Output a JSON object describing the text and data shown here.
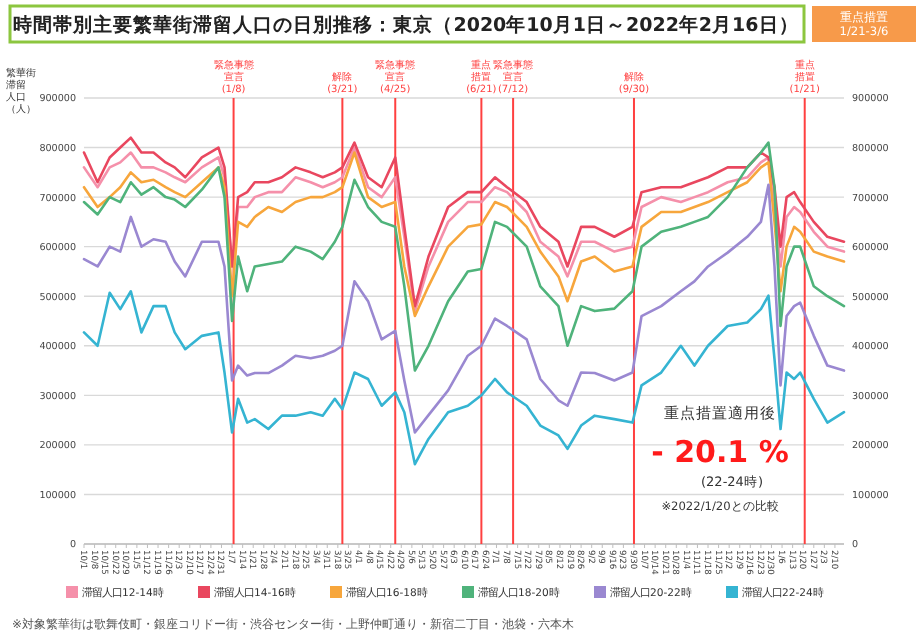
{
  "chart_data": {
    "type": "line",
    "title": "時間帯別主要繁華街滞留人口の日別推移：東京（2020年10月1日～2022年2月16日）",
    "ylabel": "繁華街滞留人口（人）",
    "x": [
      "2020-10-01",
      "2020-10-10",
      "2020-10-18",
      "2020-10-25",
      "2020-11-01",
      "2020-11-08",
      "2020-11-16",
      "2020-11-24",
      "2020-11-30",
      "2020-12-07",
      "2020-12-18",
      "2020-12-29",
      "2021-01-02",
      "2021-01-07",
      "2021-01-11",
      "2021-01-17",
      "2021-01-22",
      "2021-01-31",
      "2021-02-09",
      "2021-02-18",
      "2021-02-28",
      "2021-03-08",
      "2021-03-16",
      "2021-03-21",
      "2021-03-29",
      "2021-04-07",
      "2021-04-16",
      "2021-04-25",
      "2021-05-01",
      "2021-05-08",
      "2021-05-17",
      "2021-05-30",
      "2021-06-12",
      "2021-06-21",
      "2021-06-30",
      "2021-07-08",
      "2021-07-21",
      "2021-07-30",
      "2021-08-11",
      "2021-08-17",
      "2021-08-26",
      "2021-09-04",
      "2021-09-17",
      "2021-09-29",
      "2021-10-05",
      "2021-10-18",
      "2021-10-31",
      "2021-11-09",
      "2021-11-18",
      "2021-12-01",
      "2021-12-14",
      "2021-12-23",
      "2021-12-28",
      "2022-01-01",
      "2022-01-05",
      "2022-01-09",
      "2022-01-14",
      "2022-01-18",
      "2022-01-27",
      "2022-02-05",
      "2022-02-16"
    ],
    "series": [
      {
        "name": "滞留人口12-14時",
        "color": "#f590aa",
        "values": [
          760000,
          720000,
          760000,
          770000,
          790000,
          760000,
          760000,
          750000,
          740000,
          730000,
          760000,
          780000,
          740000,
          560000,
          680000,
          680000,
          700000,
          710000,
          710000,
          740000,
          730000,
          720000,
          730000,
          740000,
          800000,
          720000,
          700000,
          740000,
          620000,
          470000,
          560000,
          650000,
          690000,
          690000,
          720000,
          710000,
          670000,
          610000,
          580000,
          540000,
          610000,
          610000,
          590000,
          600000,
          680000,
          700000,
          690000,
          700000,
          710000,
          730000,
          740000,
          770000,
          780000,
          690000,
          560000,
          660000,
          680000,
          670000,
          630000,
          600000,
          590000
        ]
      },
      {
        "name": "滞留人口14-16時",
        "color": "#e9475f",
        "values": [
          790000,
          730000,
          780000,
          800000,
          820000,
          790000,
          790000,
          770000,
          760000,
          740000,
          780000,
          800000,
          760000,
          560000,
          700000,
          710000,
          730000,
          730000,
          740000,
          760000,
          750000,
          740000,
          750000,
          760000,
          810000,
          740000,
          720000,
          780000,
          640000,
          480000,
          580000,
          680000,
          710000,
          710000,
          740000,
          720000,
          690000,
          640000,
          610000,
          560000,
          640000,
          640000,
          620000,
          640000,
          710000,
          720000,
          720000,
          730000,
          740000,
          760000,
          760000,
          790000,
          780000,
          720000,
          600000,
          700000,
          710000,
          690000,
          650000,
          620000,
          610000
        ]
      },
      {
        "name": "滞留人口16-18時",
        "color": "#f7a63c",
        "values": [
          720000,
          680000,
          700000,
          720000,
          750000,
          730000,
          735000,
          720000,
          710000,
          700000,
          730000,
          760000,
          720000,
          500000,
          650000,
          640000,
          660000,
          680000,
          670000,
          690000,
          700000,
          700000,
          710000,
          720000,
          790000,
          700000,
          680000,
          690000,
          560000,
          460000,
          520000,
          600000,
          640000,
          645000,
          690000,
          680000,
          640000,
          590000,
          540000,
          490000,
          570000,
          580000,
          550000,
          560000,
          640000,
          670000,
          670000,
          680000,
          690000,
          710000,
          730000,
          760000,
          770000,
          650000,
          510000,
          600000,
          640000,
          630000,
          590000,
          580000,
          570000
        ]
      },
      {
        "name": "滞留人口18-20時",
        "color": "#4fb37b",
        "values": [
          690000,
          665000,
          700000,
          690000,
          730000,
          705000,
          720000,
          700000,
          695000,
          680000,
          715000,
          760000,
          700000,
          450000,
          580000,
          510000,
          560000,
          565000,
          570000,
          600000,
          590000,
          575000,
          610000,
          640000,
          735000,
          680000,
          650000,
          640000,
          520000,
          350000,
          400000,
          490000,
          550000,
          555000,
          650000,
          640000,
          600000,
          520000,
          480000,
          400000,
          480000,
          470000,
          475000,
          510000,
          600000,
          630000,
          640000,
          650000,
          660000,
          700000,
          760000,
          790000,
          810000,
          720000,
          440000,
          560000,
          600000,
          600000,
          520000,
          500000,
          480000
        ]
      },
      {
        "name": "滞留人口20-22時",
        "color": "#9a88d1",
        "values": [
          575000,
          560000,
          600000,
          590000,
          660000,
          600000,
          615000,
          610000,
          570000,
          540000,
          610000,
          610000,
          560000,
          330000,
          360000,
          340000,
          345000,
          345000,
          360000,
          380000,
          375000,
          380000,
          390000,
          400000,
          530000,
          490000,
          413000,
          430000,
          330000,
          225000,
          260000,
          310000,
          380000,
          400000,
          455000,
          440000,
          413000,
          333000,
          290000,
          279000,
          346000,
          345000,
          330000,
          346000,
          460000,
          480000,
          510000,
          530000,
          560000,
          588000,
          620000,
          650000,
          725000,
          560000,
          320000,
          460000,
          480000,
          487000,
          420000,
          360000,
          350000
        ]
      },
      {
        "name": "滞留人口22-24時",
        "color": "#35b4d2",
        "values": [
          427000,
          400000,
          507000,
          474000,
          510000,
          427000,
          480000,
          480000,
          427000,
          393000,
          420000,
          427000,
          346000,
          225000,
          293000,
          245000,
          252000,
          232000,
          259000,
          259000,
          266000,
          259000,
          293000,
          272000,
          346000,
          333000,
          279000,
          306000,
          266000,
          161000,
          212000,
          266000,
          279000,
          300000,
          333000,
          306000,
          279000,
          239000,
          219000,
          192000,
          239000,
          259000,
          252000,
          245000,
          320000,
          346000,
          400000,
          360000,
          400000,
          440000,
          447000,
          474000,
          501000,
          373000,
          232000,
          346000,
          333000,
          346000,
          293000,
          245000,
          266000
        ]
      }
    ],
    "xlim": [
      "2020-10-01",
      "2022-02-16"
    ],
    "xticks": [
      {
        "value": "2020-10-01",
        "label": "10/1"
      },
      {
        "value": "2020-10-08",
        "label": "10/8"
      },
      {
        "value": "2020-10-15",
        "label": "10/15"
      },
      {
        "value": "2020-10-22",
        "label": "10/22"
      },
      {
        "value": "2020-10-29",
        "label": "10/29"
      },
      {
        "value": "2020-11-05",
        "label": "11/5"
      },
      {
        "value": "2020-11-12",
        "label": "11/12"
      },
      {
        "value": "2020-11-19",
        "label": "11/19"
      },
      {
        "value": "2020-11-26",
        "label": "11/26"
      },
      {
        "value": "2020-12-03",
        "label": "12/3"
      },
      {
        "value": "2020-12-10",
        "label": "12/10"
      },
      {
        "value": "2020-12-17",
        "label": "12/17"
      },
      {
        "value": "2020-12-24",
        "label": "12/24"
      },
      {
        "value": "2020-12-31",
        "label": "12/31"
      },
      {
        "value": "2021-01-07",
        "label": "1/7"
      },
      {
        "value": "2021-01-14",
        "label": "1/14"
      },
      {
        "value": "2021-01-21",
        "label": "1/21"
      },
      {
        "value": "2021-01-28",
        "label": "1/28"
      },
      {
        "value": "2021-02-04",
        "label": "2/4"
      },
      {
        "value": "2021-02-11",
        "label": "2/11"
      },
      {
        "value": "2021-02-18",
        "label": "2/18"
      },
      {
        "value": "2021-02-25",
        "label": "2/25"
      },
      {
        "value": "2021-03-04",
        "label": "3/4"
      },
      {
        "value": "2021-03-11",
        "label": "3/11"
      },
      {
        "value": "2021-03-18",
        "label": "3/18"
      },
      {
        "value": "2021-03-25",
        "label": "3/25"
      },
      {
        "value": "2021-04-01",
        "label": "4/1"
      },
      {
        "value": "2021-04-08",
        "label": "4/8"
      },
      {
        "value": "2021-04-15",
        "label": "4/15"
      },
      {
        "value": "2021-04-22",
        "label": "4/22"
      },
      {
        "value": "2021-04-29",
        "label": "4/29"
      },
      {
        "value": "2021-05-06",
        "label": "5/6"
      },
      {
        "value": "2021-05-13",
        "label": "5/13"
      },
      {
        "value": "2021-05-20",
        "label": "5/20"
      },
      {
        "value": "2021-05-27",
        "label": "5/27"
      },
      {
        "value": "2021-06-03",
        "label": "6/3"
      },
      {
        "value": "2021-06-10",
        "label": "6/10"
      },
      {
        "value": "2021-06-17",
        "label": "6/17"
      },
      {
        "value": "2021-06-24",
        "label": "6/24"
      },
      {
        "value": "2021-07-01",
        "label": "7/1"
      },
      {
        "value": "2021-07-08",
        "label": "7/8"
      },
      {
        "value": "2021-07-15",
        "label": "7/15"
      },
      {
        "value": "2021-07-22",
        "label": "7/22"
      },
      {
        "value": "2021-07-29",
        "label": "7/29"
      },
      {
        "value": "2021-08-05",
        "label": "8/5"
      },
      {
        "value": "2021-08-12",
        "label": "8/12"
      },
      {
        "value": "2021-08-19",
        "label": "8/19"
      },
      {
        "value": "2021-08-26",
        "label": "8/26"
      },
      {
        "value": "2021-09-02",
        "label": "9/2"
      },
      {
        "value": "2021-09-09",
        "label": "9/9"
      },
      {
        "value": "2021-09-16",
        "label": "9/16"
      },
      {
        "value": "2021-09-23",
        "label": "9/23"
      },
      {
        "value": "2021-09-30",
        "label": "9/30"
      },
      {
        "value": "2021-10-07",
        "label": "10/7"
      },
      {
        "value": "2021-10-14",
        "label": "10/14"
      },
      {
        "value": "2021-10-21",
        "label": "10/21"
      },
      {
        "value": "2021-10-28",
        "label": "10/28"
      },
      {
        "value": "2021-11-04",
        "label": "11/4"
      },
      {
        "value": "2021-11-11",
        "label": "11/11"
      },
      {
        "value": "2021-11-18",
        "label": "11/18"
      },
      {
        "value": "2021-11-25",
        "label": "11/25"
      },
      {
        "value": "2021-12-02",
        "label": "12/2"
      },
      {
        "value": "2021-12-09",
        "label": "12/9"
      },
      {
        "value": "2021-12-16",
        "label": "12/16"
      },
      {
        "value": "2021-12-23",
        "label": "12/23"
      },
      {
        "value": "2021-12-30",
        "label": "12/30"
      },
      {
        "value": "2022-01-06",
        "label": "1/6"
      },
      {
        "value": "2022-01-13",
        "label": "1/13"
      },
      {
        "value": "2022-01-20",
        "label": "1/20"
      },
      {
        "value": "2022-01-27",
        "label": "1/27"
      },
      {
        "value": "2022-02-03",
        "label": "2/3"
      },
      {
        "value": "2022-02-10",
        "label": "2/10"
      }
    ],
    "ylim": [
      0,
      900000
    ],
    "yticks": [
      0,
      100000,
      200000,
      300000,
      400000,
      500000,
      600000,
      700000,
      800000,
      900000
    ],
    "y2lim": [
      0,
      900000
    ],
    "y2ticks": [
      0,
      100000,
      200000,
      300000,
      400000,
      500000,
      600000,
      700000,
      800000,
      900000
    ],
    "grid": "y",
    "legend": "bottom",
    "ref_lines": [
      {
        "axis": "x",
        "value": "2021-01-08",
        "label": "緊急事態宣言(1/8)",
        "color": "#ff4040"
      },
      {
        "axis": "x",
        "value": "2021-03-21",
        "label": "解除(3/21)",
        "color": "#ff4040"
      },
      {
        "axis": "x",
        "value": "2021-04-25",
        "label": "緊急事態宣言(4/25)",
        "color": "#ff4040"
      },
      {
        "axis": "x",
        "value": "2021-06-21",
        "label": "重点措置(6/21)",
        "color": "#ff4040"
      },
      {
        "axis": "x",
        "value": "2021-07-12",
        "label": "緊急事態宣言(7/12)",
        "color": "#ff4040"
      },
      {
        "axis": "x",
        "value": "2021-09-30",
        "label": "解除(9/30)",
        "color": "#ff4040"
      },
      {
        "axis": "x",
        "value": "2022-01-21",
        "label": "重点措置(1/21)",
        "color": "#ff4040"
      }
    ],
    "annotations": [
      "重点措置 1/21-3/6",
      "重点措置適用後",
      "- 20.1 %",
      "(22-24時)",
      "※2022/1/20との比較",
      "※対象繁華街は歌舞伎町・銀座コリドー街・渋谷センター街・上野仲町通り・新宿二丁目・池袋・六本木"
    ]
  }
}
